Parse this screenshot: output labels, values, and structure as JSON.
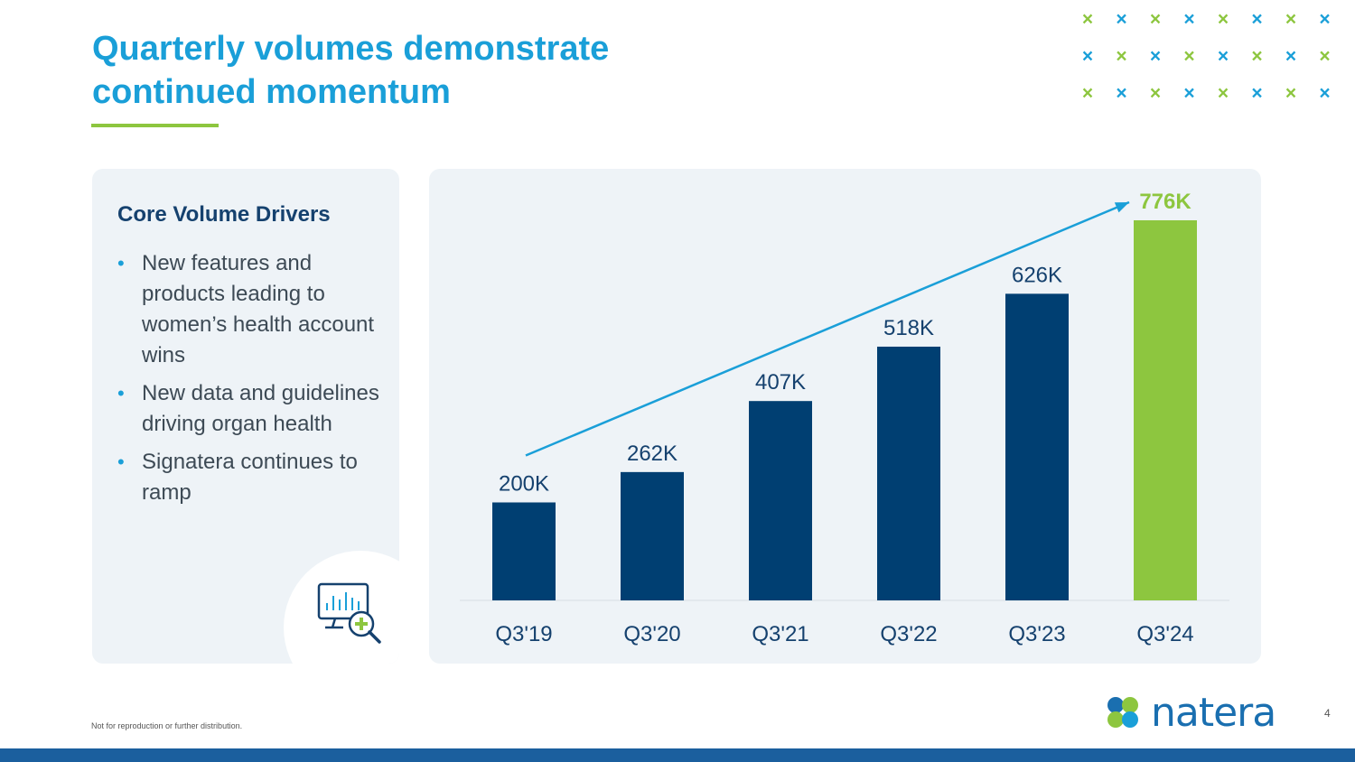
{
  "slide": {
    "title_lines": [
      "Quarterly volumes demonstrate",
      "continued momentum"
    ],
    "footer_note": "Not for reproduction or further distribution.",
    "page_number": "4",
    "logo_text": "natera"
  },
  "drivers": {
    "heading": "Core Volume Drivers",
    "items": [
      "New features and products leading to women’s health account wins",
      "New data and guidelines driving organ health",
      "Signatera continues to ramp"
    ],
    "icon": "monitor-chart-add-icon"
  },
  "colors": {
    "title": "#1a9fd8",
    "bar_primary": "#003f72",
    "bar_highlight": "#8dc63f",
    "trend_arrow": "#1a9fd8",
    "accent_green": "#8dc63f",
    "heading_navy": "#15416e"
  },
  "chart_data": {
    "type": "bar",
    "categories": [
      "Q3'19",
      "Q3'20",
      "Q3'21",
      "Q3'22",
      "Q3'23",
      "Q3'24"
    ],
    "values": [
      200,
      262,
      407,
      518,
      626,
      776
    ],
    "data_labels": [
      "200K",
      "262K",
      "407K",
      "518K",
      "626K",
      "776K"
    ],
    "unit": "K",
    "highlight_index": 5,
    "trend_arrow": true,
    "title": "",
    "xlabel": "",
    "ylabel": "",
    "ylim": [
      0,
      800
    ],
    "grid": false
  }
}
